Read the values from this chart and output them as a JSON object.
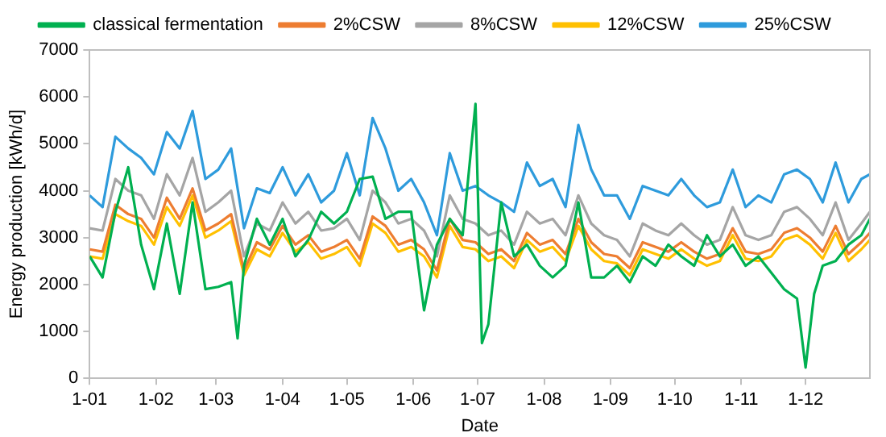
{
  "chart_data": {
    "type": "line",
    "xlabel": "Date",
    "ylabel": "Energy production [kWh/d]",
    "legend": "top",
    "marker": "none",
    "line_style": "solid",
    "xlim": [
      "--01-01",
      "--12-31"
    ],
    "ylim": [
      0,
      7000
    ],
    "yticks": [
      0,
      1000,
      2000,
      3000,
      4000,
      5000,
      6000,
      7000
    ],
    "xticks": [
      {
        "value": "--01-01",
        "label": "1-01"
      },
      {
        "value": "--02-01",
        "label": "1-02"
      },
      {
        "value": "--03-01",
        "label": "1-03"
      },
      {
        "value": "--04-01",
        "label": "1-04"
      },
      {
        "value": "--05-01",
        "label": "1-05"
      },
      {
        "value": "--06-01",
        "label": "1-06"
      },
      {
        "value": "--07-01",
        "label": "1-07"
      },
      {
        "value": "--08-01",
        "label": "1-08"
      },
      {
        "value": "--09-01",
        "label": "1-09"
      },
      {
        "value": "--10-01",
        "label": "1-10"
      },
      {
        "value": "--11-01",
        "label": "1-11"
      },
      {
        "value": "--12-01",
        "label": "1-12"
      }
    ],
    "x": [
      "--01-01",
      "--01-07",
      "--01-13",
      "--01-19",
      "--01-25",
      "--01-31",
      "--02-06",
      "--02-12",
      "--02-18",
      "--02-24",
      "--03-02",
      "--03-08",
      "--03-14",
      "--03-20",
      "--03-26",
      "--04-01",
      "--04-07",
      "--04-13",
      "--04-19",
      "--04-25",
      "--05-01",
      "--05-07",
      "--05-13",
      "--05-19",
      "--05-25",
      "--05-31",
      "--06-06",
      "--06-12",
      "--06-18",
      "--06-24",
      "--06-30",
      "--07-06",
      "--07-12",
      "--07-18",
      "--07-24",
      "--07-30",
      "--08-05",
      "--08-11",
      "--08-17",
      "--08-23",
      "--08-29",
      "--09-04",
      "--09-10",
      "--09-16",
      "--09-22",
      "--09-28",
      "--10-04",
      "--10-10",
      "--10-16",
      "--10-22",
      "--10-28",
      "--11-03",
      "--11-09",
      "--11-15",
      "--11-21",
      "--11-27",
      "--12-03",
      "--12-09",
      "--12-15",
      "--12-21",
      "--12-27",
      "--12-31"
    ],
    "series": [
      {
        "name": "classical fermentation",
        "color": "#00b050",
        "x": [
          "--01-01",
          "--01-07",
          "--01-13",
          "--01-19",
          "--01-25",
          "--01-31",
          "--02-06",
          "--02-12",
          "--02-18",
          "--02-24",
          "--03-02",
          "--03-08",
          "--03-11",
          "--03-14",
          "--03-20",
          "--03-26",
          "--04-01",
          "--04-07",
          "--04-13",
          "--04-19",
          "--04-25",
          "--05-01",
          "--05-07",
          "--05-13",
          "--05-19",
          "--05-25",
          "--05-31",
          "--06-06",
          "--06-12",
          "--06-18",
          "--06-24",
          "--06-30",
          "--07-03",
          "--07-06",
          "--07-12",
          "--07-18",
          "--07-24",
          "--07-30",
          "--08-05",
          "--08-11",
          "--08-17",
          "--08-23",
          "--08-29",
          "--09-04",
          "--09-10",
          "--09-16",
          "--09-22",
          "--09-28",
          "--10-04",
          "--10-10",
          "--10-16",
          "--10-22",
          "--10-28",
          "--11-03",
          "--11-09",
          "--11-15",
          "--11-21",
          "--11-27",
          "--12-01",
          "--12-05",
          "--12-09",
          "--12-15",
          "--12-21",
          "--12-27",
          "--12-31"
        ],
        "values": [
          2600,
          2150,
          3550,
          4500,
          2850,
          1900,
          3300,
          1800,
          3750,
          1900,
          1950,
          2050,
          850,
          2400,
          3400,
          2850,
          3400,
          2600,
          2950,
          3550,
          3300,
          3550,
          4250,
          4300,
          3400,
          3550,
          3550,
          1450,
          2850,
          3400,
          3050,
          5850,
          750,
          1150,
          3750,
          2600,
          2850,
          2400,
          2150,
          2400,
          3750,
          2150,
          2150,
          2400,
          2050,
          2600,
          2400,
          2850,
          2600,
          2400,
          3050,
          2600,
          2850,
          2400,
          2600,
          2250,
          1900,
          1700,
          230,
          1800,
          2400,
          2500,
          2850,
          3050,
          3400
        ]
      },
      {
        "name": "2%CSW",
        "color": "#ed7d31",
        "values": [
          2750,
          2700,
          3700,
          3500,
          3400,
          3000,
          3850,
          3400,
          4050,
          3150,
          3300,
          3500,
          2300,
          2900,
          2750,
          3250,
          2850,
          3050,
          2700,
          2800,
          2950,
          2550,
          3450,
          3250,
          2850,
          2950,
          2750,
          2300,
          3400,
          2950,
          2900,
          2650,
          2750,
          2500,
          3100,
          2850,
          2950,
          2650,
          3400,
          2900,
          2650,
          2600,
          2350,
          2900,
          2800,
          2700,
          2900,
          2700,
          2550,
          2650,
          3200,
          2700,
          2650,
          2750,
          3100,
          3200,
          3000,
          2700,
          3250,
          2650,
          2900,
          3100
        ]
      },
      {
        "name": "8%CSW",
        "color": "#a5a5a5",
        "values": [
          3200,
          3150,
          4250,
          4000,
          3900,
          3400,
          4350,
          3900,
          4700,
          3550,
          3750,
          4000,
          2600,
          3300,
          3150,
          3750,
          3300,
          3550,
          3150,
          3200,
          3400,
          2950,
          4000,
          3750,
          3300,
          3400,
          3150,
          2600,
          3900,
          3400,
          3300,
          3050,
          3150,
          2850,
          3550,
          3300,
          3400,
          3050,
          3900,
          3300,
          3050,
          2950,
          2600,
          3300,
          3150,
          3050,
          3300,
          3050,
          2850,
          2950,
          3650,
          3050,
          2950,
          3050,
          3550,
          3650,
          3400,
          3050,
          3750,
          2950,
          3300,
          3550
        ]
      },
      {
        "name": "12%CSW",
        "color": "#ffc000",
        "values": [
          2600,
          2550,
          3500,
          3350,
          3250,
          2850,
          3650,
          3250,
          3900,
          3000,
          3150,
          3350,
          2200,
          2750,
          2600,
          3100,
          2700,
          2900,
          2550,
          2650,
          2800,
          2400,
          3300,
          3100,
          2700,
          2800,
          2600,
          2150,
          3250,
          2800,
          2750,
          2500,
          2600,
          2350,
          2950,
          2700,
          2800,
          2500,
          3250,
          2750,
          2500,
          2450,
          2200,
          2750,
          2650,
          2550,
          2750,
          2550,
          2400,
          2500,
          3050,
          2550,
          2500,
          2600,
          2950,
          3050,
          2850,
          2550,
          3100,
          2500,
          2750,
          2950
        ]
      },
      {
        "name": "25%CSW",
        "color": "#2e9bdc",
        "values": [
          3900,
          3650,
          5150,
          4900,
          4700,
          4350,
          5250,
          4900,
          5700,
          4250,
          4450,
          4900,
          3200,
          4050,
          3950,
          4500,
          3900,
          4350,
          3750,
          4000,
          4800,
          3900,
          5550,
          4900,
          4000,
          4250,
          3750,
          3050,
          4800,
          4000,
          4100,
          3900,
          3750,
          3550,
          4600,
          4100,
          4250,
          3650,
          5400,
          4450,
          3900,
          3900,
          3400,
          4100,
          4000,
          3900,
          4250,
          3900,
          3650,
          3750,
          4450,
          3650,
          3900,
          3750,
          4350,
          4450,
          4250,
          3750,
          4600,
          3750,
          4250,
          4350
        ]
      }
    ]
  }
}
